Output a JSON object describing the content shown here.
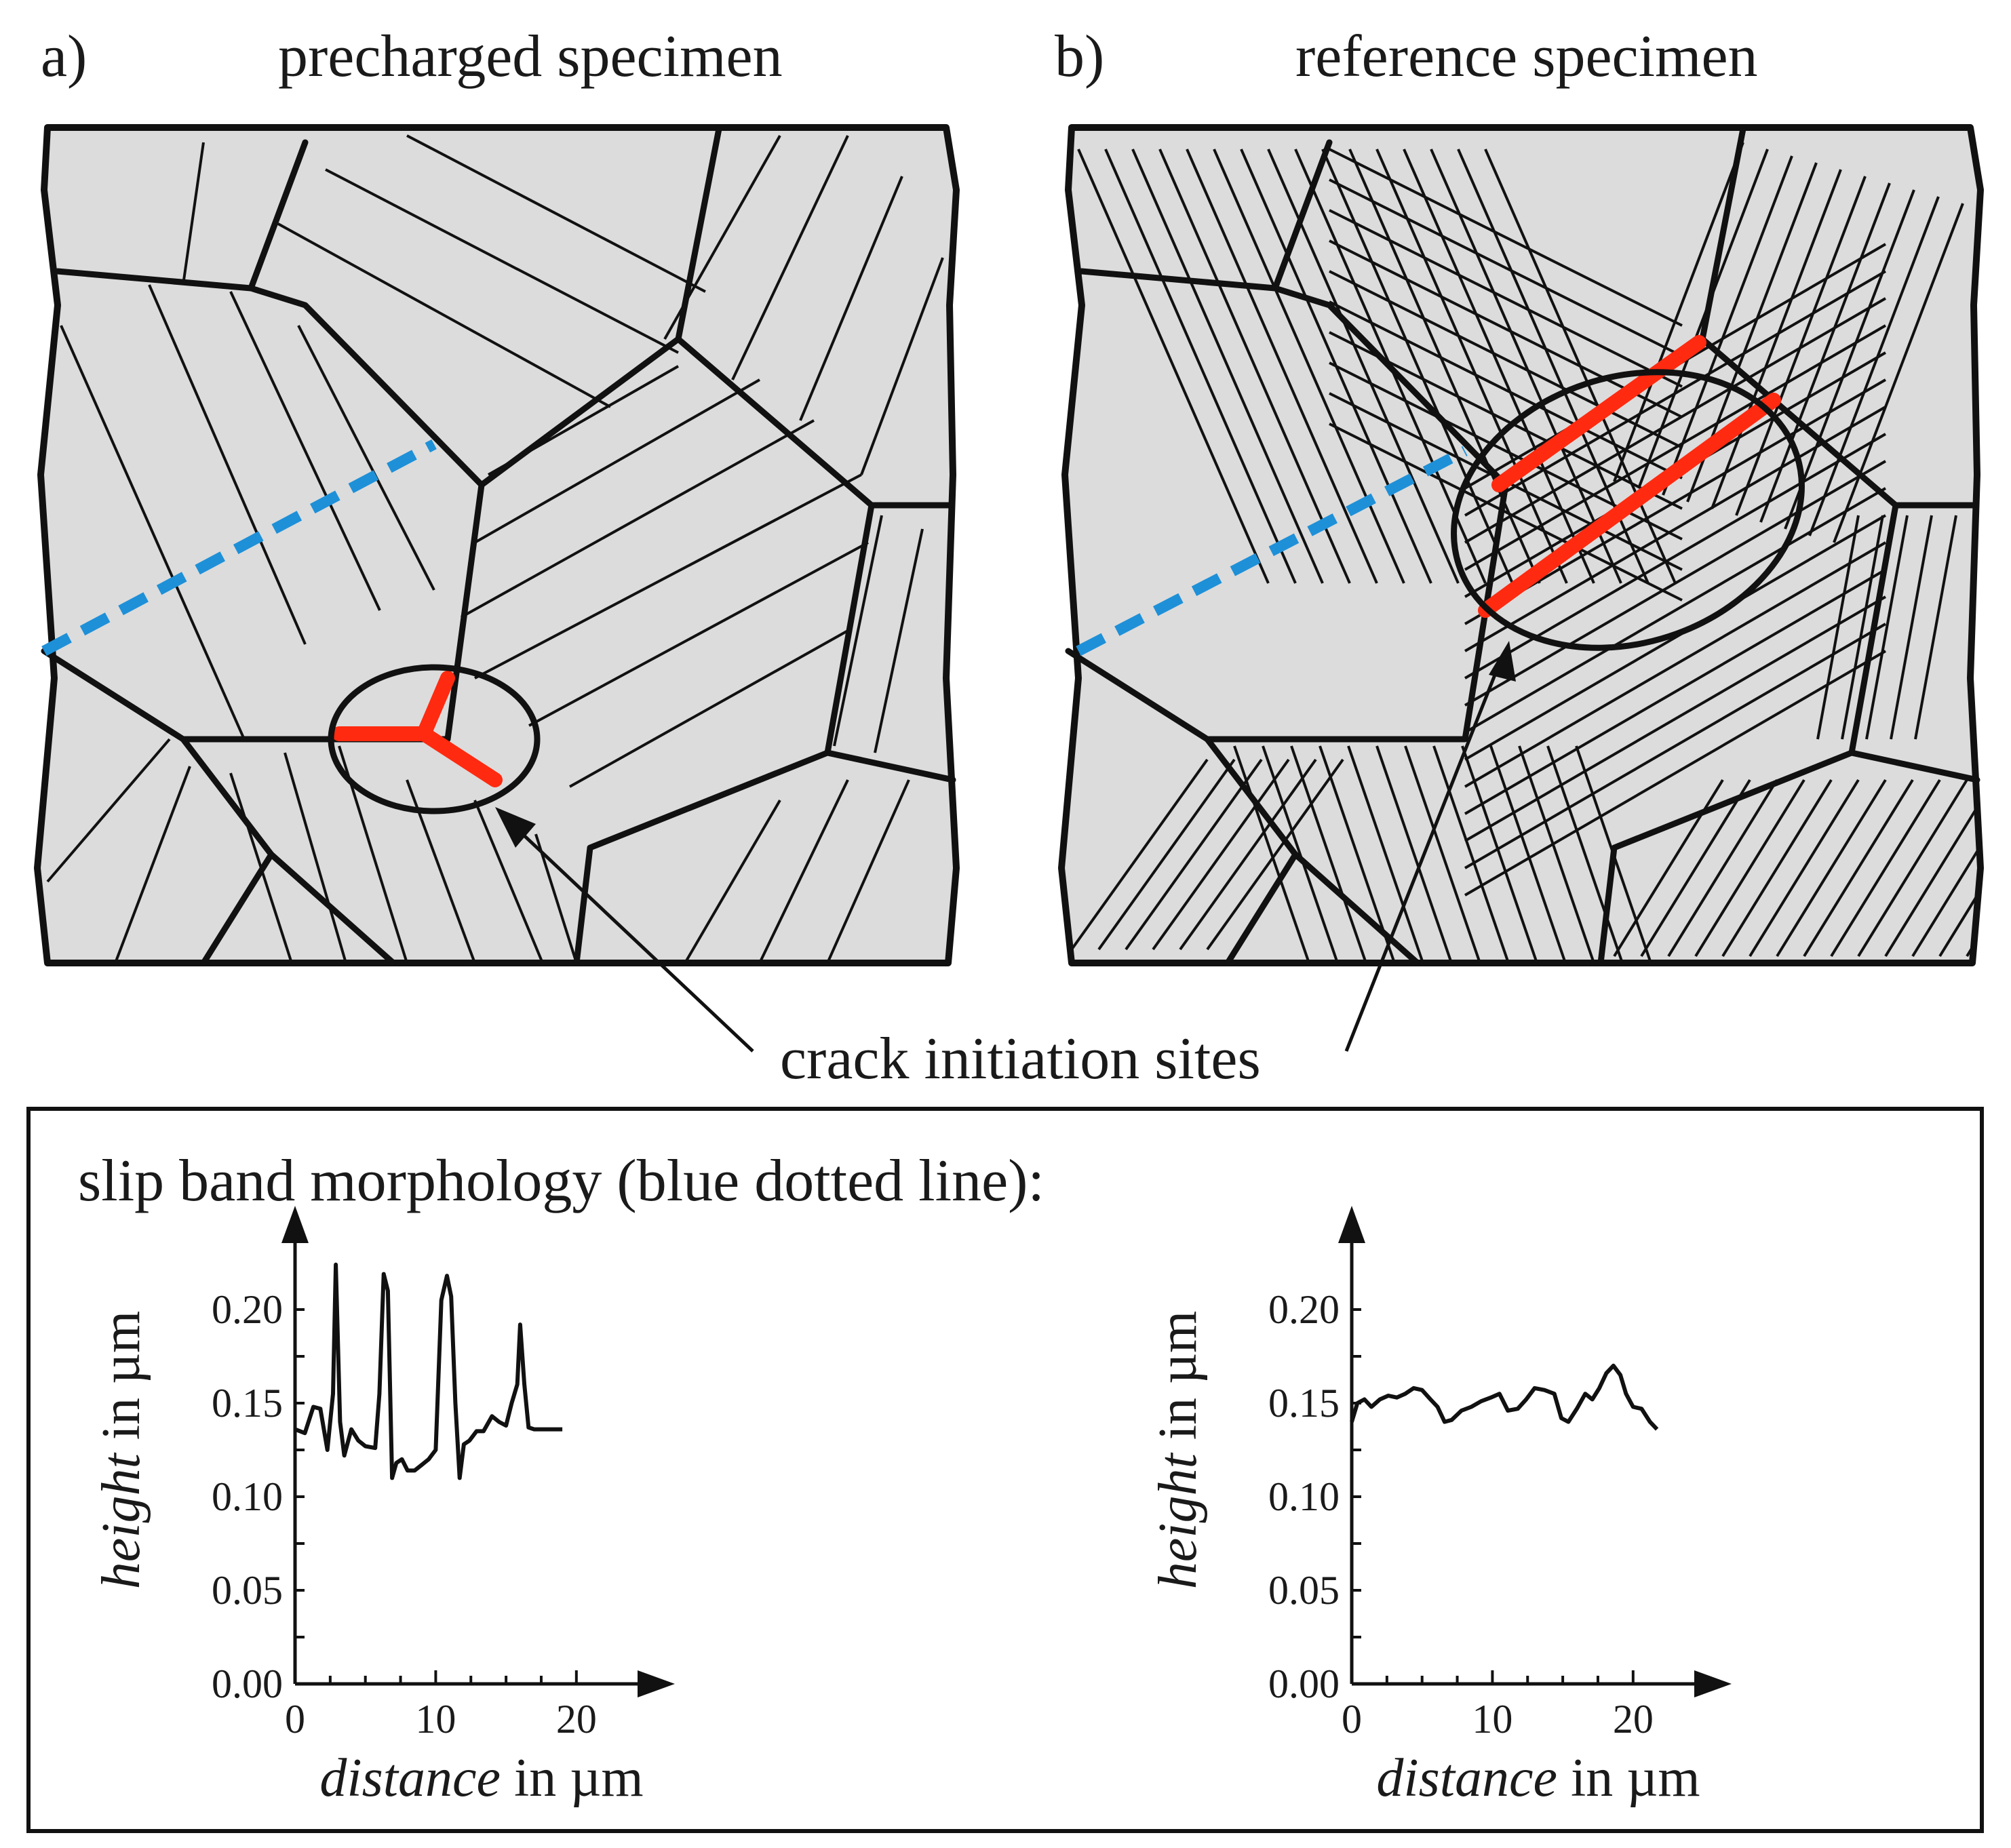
{
  "panels": {
    "a": {
      "letter": "a)",
      "title": "precharged specimen"
    },
    "b": {
      "letter": "b)",
      "title": "reference specimen"
    }
  },
  "annotation": {
    "crack_label": "crack initiation sites"
  },
  "colors": {
    "crack": "#ff2a10",
    "slip_band_line": "#1e90d8",
    "grain_fill": "#dcdcdc"
  },
  "inset": {
    "title": "slip band morphology (blue dotted line):"
  },
  "chart_data": [
    {
      "type": "line",
      "title": "precharged specimen",
      "xlabel_italic": "distance",
      "xlabel_unit": " in µm",
      "ylabel_italic": "height",
      "ylabel_unit": " in µm",
      "xlim": [
        0,
        27
      ],
      "ylim": [
        0,
        0.25
      ],
      "xticks": [
        "0",
        "10",
        "20"
      ],
      "yticks": [
        "0.00",
        "0.05",
        "0.10",
        "0.15",
        "0.20"
      ],
      "xtick_values": [
        0,
        10,
        20
      ],
      "ytick_values": [
        0,
        0.05,
        0.1,
        0.15,
        0.2
      ],
      "x": [
        0,
        0.7,
        1.3,
        1.8,
        2.3,
        2.7,
        2.9,
        3.2,
        3.5,
        4.0,
        4.5,
        5.0,
        5.7,
        6.0,
        6.3,
        6.6,
        6.9,
        7.2,
        7.6,
        8.0,
        8.5,
        9.0,
        9.5,
        10.0,
        10.4,
        10.8,
        11.1,
        11.4,
        11.7,
        12.0,
        12.4,
        12.9,
        13.4,
        14.0,
        14.5,
        15.0,
        15.4,
        15.8,
        16.0,
        16.3,
        16.6,
        17.0,
        18.0,
        19.0
      ],
      "y": [
        0.136,
        0.134,
        0.148,
        0.147,
        0.125,
        0.155,
        0.224,
        0.14,
        0.122,
        0.136,
        0.13,
        0.127,
        0.126,
        0.155,
        0.219,
        0.21,
        0.11,
        0.118,
        0.12,
        0.114,
        0.114,
        0.117,
        0.12,
        0.125,
        0.205,
        0.218,
        0.207,
        0.15,
        0.11,
        0.128,
        0.13,
        0.135,
        0.135,
        0.143,
        0.14,
        0.138,
        0.15,
        0.16,
        0.192,
        0.16,
        0.137,
        0.136,
        0.136,
        0.136
      ]
    },
    {
      "type": "line",
      "title": "reference specimen",
      "xlabel_italic": "distance",
      "xlabel_unit": " in µm",
      "ylabel_italic": "height",
      "ylabel_unit": " in µm",
      "xlim": [
        0,
        27
      ],
      "ylim": [
        0,
        0.25
      ],
      "xticks": [
        "0",
        "10",
        "20"
      ],
      "yticks": [
        "0.00",
        "0.05",
        "0.10",
        "0.15",
        "0.20"
      ],
      "xtick_values": [
        0,
        10,
        20
      ],
      "ytick_values": [
        0,
        0.05,
        0.1,
        0.15,
        0.2
      ],
      "x": [
        0,
        0.4,
        0.9,
        1.4,
        2.0,
        2.6,
        3.2,
        3.8,
        4.4,
        5.0,
        5.6,
        6.1,
        6.6,
        7.1,
        7.8,
        8.5,
        9.2,
        9.9,
        10.5,
        11.1,
        11.8,
        12.4,
        13.0,
        13.7,
        14.4,
        14.9,
        15.4,
        16.0,
        16.6,
        17.1,
        17.6,
        18.1,
        18.6,
        19.1,
        19.5,
        20.0,
        20.6,
        21.2,
        21.7
      ],
      "y": [
        0.14,
        0.15,
        0.152,
        0.148,
        0.152,
        0.154,
        0.153,
        0.155,
        0.158,
        0.157,
        0.152,
        0.148,
        0.14,
        0.141,
        0.146,
        0.148,
        0.151,
        0.153,
        0.155,
        0.146,
        0.147,
        0.152,
        0.158,
        0.157,
        0.155,
        0.142,
        0.14,
        0.147,
        0.155,
        0.152,
        0.158,
        0.166,
        0.17,
        0.165,
        0.155,
        0.148,
        0.147,
        0.14,
        0.136
      ]
    }
  ]
}
